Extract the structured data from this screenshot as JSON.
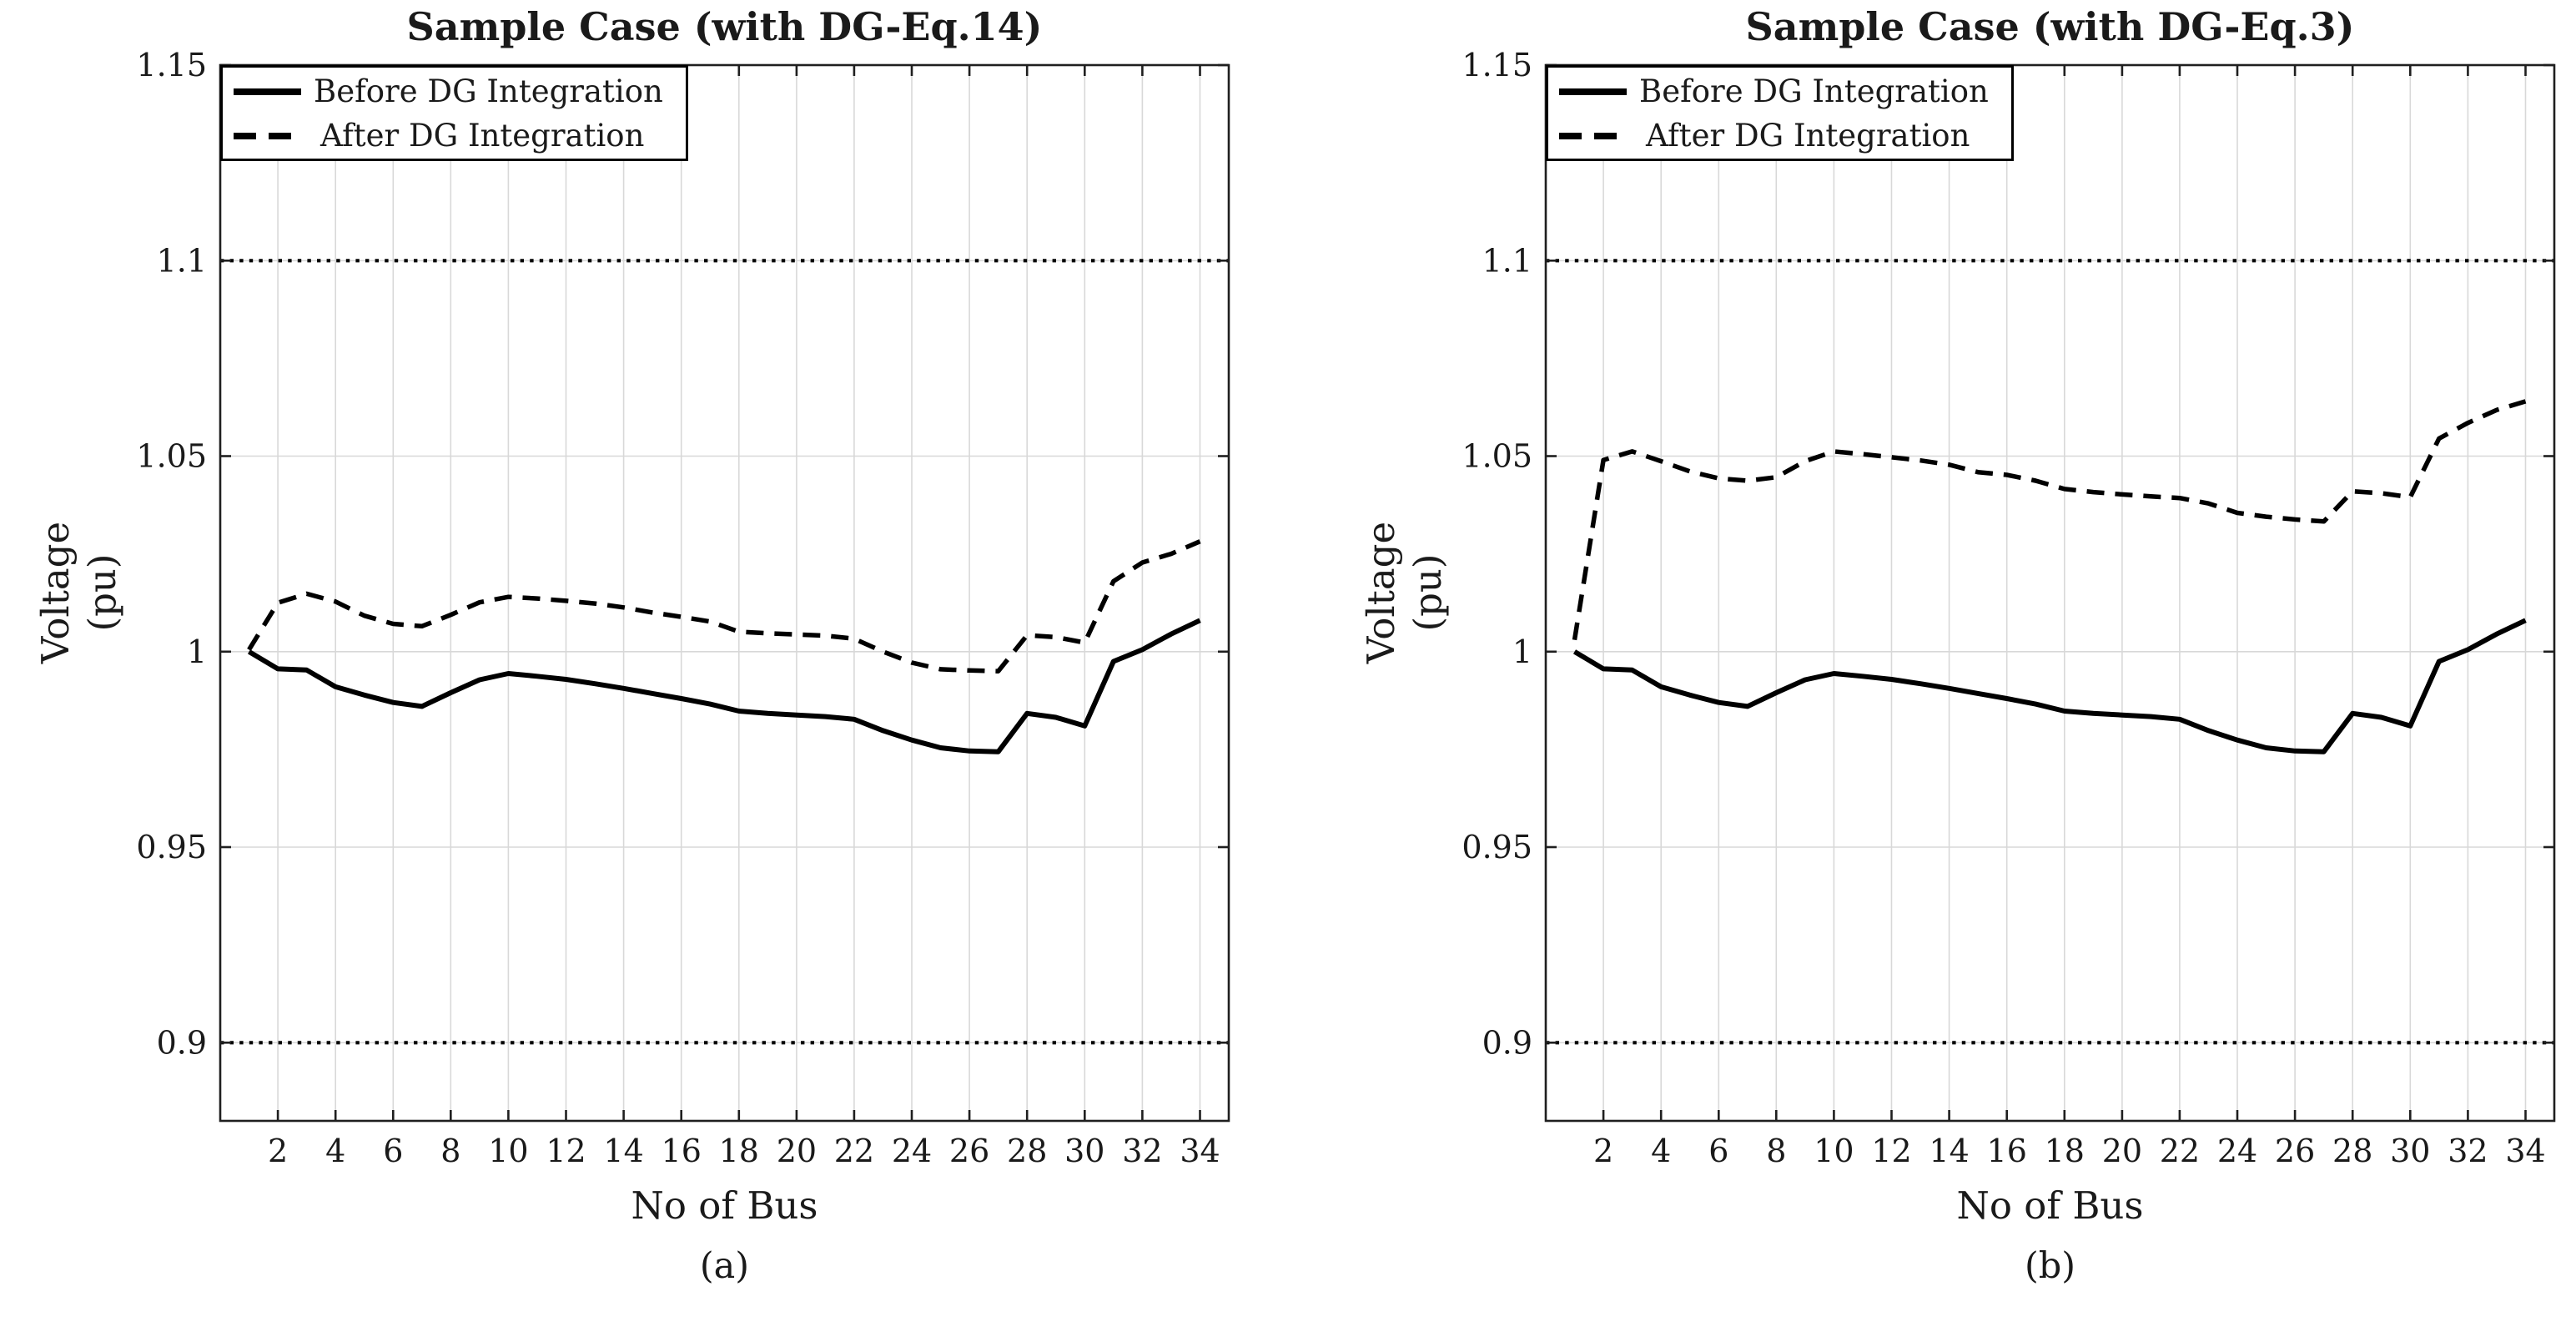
{
  "figure": {
    "background": "#ffffff",
    "text_color": "#1a1a1a",
    "grid_color": "#d8d8d8",
    "spine_color": "#1f1f1f",
    "line_color": "#000000"
  },
  "chart_data": [
    {
      "type": "line",
      "title": "Sample Case (with DG-Eq.14)",
      "xlabel": "No of Bus",
      "ylabel": "Voltage (pu)",
      "ylabel_lines": [
        "Voltage",
        "(pu)"
      ],
      "caption": "(a)",
      "xlim": [
        0,
        35
      ],
      "ylim": [
        0.88,
        1.15
      ],
      "xticks": [
        2,
        4,
        6,
        8,
        10,
        12,
        14,
        16,
        18,
        20,
        22,
        24,
        26,
        28,
        30,
        32,
        34
      ],
      "yticks": [
        0.9,
        0.95,
        1.0,
        1.05,
        1.1,
        1.15
      ],
      "ytick_labels": [
        "0.9",
        "0.95",
        "1",
        "1.05",
        "1.1",
        "1.15"
      ],
      "limit_lines": [
        0.9,
        1.1
      ],
      "grid": true,
      "legend_position": "top-left",
      "x": [
        1,
        2,
        3,
        4,
        5,
        6,
        7,
        8,
        9,
        10,
        11,
        12,
        13,
        14,
        15,
        16,
        17,
        18,
        19,
        20,
        21,
        22,
        23,
        24,
        25,
        26,
        27,
        28,
        29,
        30,
        31,
        32,
        33,
        34
      ],
      "series": [
        {
          "name": "Before DG Integration",
          "style": "solid",
          "values": [
            1.0,
            0.9956,
            0.9953,
            0.991,
            0.9889,
            0.987,
            0.986,
            0.9895,
            0.9928,
            0.9944,
            0.9937,
            0.9929,
            0.9918,
            0.9906,
            0.9893,
            0.988,
            0.9866,
            0.9848,
            0.9842,
            0.9838,
            0.9834,
            0.9827,
            0.9798,
            0.9774,
            0.9754,
            0.9746,
            0.9744,
            0.9842,
            0.9832,
            0.981,
            0.9975,
            1.0005,
            1.0045,
            1.008
          ]
        },
        {
          "name": "After DG Integration",
          "style": "dashed",
          "values": [
            1.0005,
            1.0125,
            1.0148,
            1.0128,
            1.0092,
            1.0071,
            1.0065,
            1.0094,
            1.0126,
            1.014,
            1.0136,
            1.013,
            1.0123,
            1.0113,
            1.01,
            1.0089,
            1.0077,
            1.0051,
            1.0047,
            1.0044,
            1.0041,
            1.0033,
            1.0,
            0.9972,
            0.9955,
            0.9952,
            0.995,
            1.0042,
            1.0037,
            1.0023,
            1.018,
            1.0228,
            1.025,
            1.0282
          ]
        }
      ]
    },
    {
      "type": "line",
      "title": "Sample Case (with DG-Eq.3)",
      "xlabel": "No of Bus",
      "ylabel": "Voltage (pu)",
      "ylabel_lines": [
        "Voltage",
        "(pu)"
      ],
      "caption": "(b)",
      "xlim": [
        0,
        35
      ],
      "ylim": [
        0.88,
        1.15
      ],
      "xticks": [
        2,
        4,
        6,
        8,
        10,
        12,
        14,
        16,
        18,
        20,
        22,
        24,
        26,
        28,
        30,
        32,
        34
      ],
      "yticks": [
        0.9,
        0.95,
        1.0,
        1.05,
        1.1,
        1.15
      ],
      "ytick_labels": [
        "0.9",
        "0.95",
        "1",
        "1.05",
        "1.1",
        "1.15"
      ],
      "limit_lines": [
        0.9,
        1.1
      ],
      "grid": true,
      "legend_position": "top-left",
      "x": [
        1,
        2,
        3,
        4,
        5,
        6,
        7,
        8,
        9,
        10,
        11,
        12,
        13,
        14,
        15,
        16,
        17,
        18,
        19,
        20,
        21,
        22,
        23,
        24,
        25,
        26,
        27,
        28,
        29,
        30,
        31,
        32,
        33,
        34
      ],
      "series": [
        {
          "name": "Before DG Integration",
          "style": "solid",
          "values": [
            1.0,
            0.9956,
            0.9953,
            0.991,
            0.9889,
            0.987,
            0.986,
            0.9895,
            0.9928,
            0.9944,
            0.9937,
            0.9929,
            0.9918,
            0.9906,
            0.9893,
            0.988,
            0.9866,
            0.9848,
            0.9842,
            0.9838,
            0.9834,
            0.9827,
            0.9798,
            0.9774,
            0.9754,
            0.9746,
            0.9744,
            0.9842,
            0.9832,
            0.981,
            0.9975,
            1.0005,
            1.0045,
            1.008
          ]
        },
        {
          "name": "After DG Integration",
          "style": "dashed",
          "values": [
            1.003,
            1.049,
            1.0512,
            1.0487,
            1.0461,
            1.0443,
            1.0437,
            1.0446,
            1.0487,
            1.0512,
            1.0505,
            1.0497,
            1.0489,
            1.0478,
            1.0459,
            1.0452,
            1.0437,
            1.0416,
            1.0408,
            1.0402,
            1.0397,
            1.0393,
            1.0379,
            1.0355,
            1.0345,
            1.0338,
            1.0333,
            1.041,
            1.0405,
            1.0395,
            1.0545,
            1.0585,
            1.0618,
            1.064
          ]
        }
      ]
    }
  ]
}
